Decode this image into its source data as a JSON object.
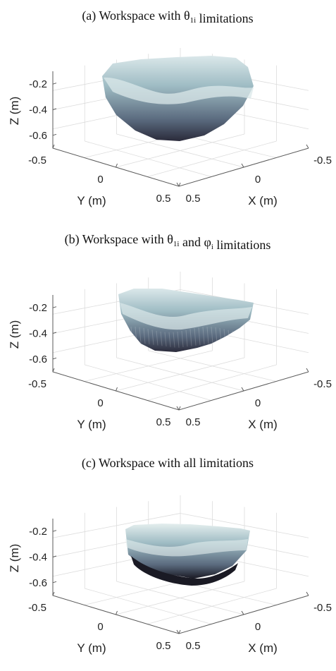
{
  "chart_data": [
    {
      "type": "surface3d",
      "title": "(a) Workspace with θ1i  limitations",
      "title_parts": {
        "prefix": "(a) Workspace with θ",
        "sub1": "1i",
        "suffix": "  limitations"
      },
      "xlabel": "X (m)",
      "ylabel": "Y (m)",
      "zlabel": "Z (m)",
      "xticks": [
        "-0.5",
        "0",
        "0.5"
      ],
      "yticks": [
        "-0.5",
        "0",
        "0.5"
      ],
      "zticks": [
        "-0.2",
        "-0.4",
        "-0.6"
      ],
      "xlim": [
        -0.5,
        0.5
      ],
      "ylim": [
        -0.5,
        0.5
      ],
      "zlim": [
        -0.7,
        -0.1
      ],
      "grid": true,
      "shape": "bowl",
      "colormap": [
        "#2a2a3a",
        "#5a6a7e",
        "#9fbcc4",
        "#dbe8ea"
      ]
    },
    {
      "type": "surface3d",
      "title": "(b) Workspace with θ1i and φi limitations",
      "title_parts": {
        "prefix": "(b) Workspace with θ",
        "sub1": "1i",
        "mid": " and φ",
        "sub2": "i",
        "suffix": " limitations"
      },
      "xlabel": "X (m)",
      "ylabel": "Y (m)",
      "zlabel": "Z (m)",
      "xticks": [
        "-0.5",
        "0",
        "0.5"
      ],
      "yticks": [
        "-0.5",
        "0",
        "0.5"
      ],
      "zticks": [
        "-0.2",
        "-0.4",
        "-0.6"
      ],
      "xlim": [
        -0.5,
        0.5
      ],
      "ylim": [
        -0.5,
        0.5
      ],
      "zlim": [
        -0.7,
        -0.1
      ],
      "grid": true,
      "shape": "cut-bowl",
      "colormap": [
        "#2a2a3a",
        "#5a6a7e",
        "#9fbcc4",
        "#dbe8ea"
      ]
    },
    {
      "type": "surface3d",
      "title": "(c) Workspace with all limitations",
      "title_parts": {
        "prefix": "(c) Workspace with all limitations"
      },
      "xlabel": "X (m)",
      "ylabel": "Y (m)",
      "zlabel": "Z (m)",
      "xticks": [
        "-0.5",
        "0",
        "0.5"
      ],
      "yticks": [
        "-0.5",
        "0",
        "0.5"
      ],
      "zticks": [
        "-0.2",
        "-0.4",
        "-0.6"
      ],
      "xlim": [
        -0.5,
        0.5
      ],
      "ylim": [
        -0.5,
        0.5
      ],
      "zlim": [
        -0.7,
        -0.1
      ],
      "grid": true,
      "shape": "slab",
      "colormap": [
        "#1a1a24",
        "#5a6a7e",
        "#9fbcc4",
        "#e4eeee"
      ]
    }
  ]
}
